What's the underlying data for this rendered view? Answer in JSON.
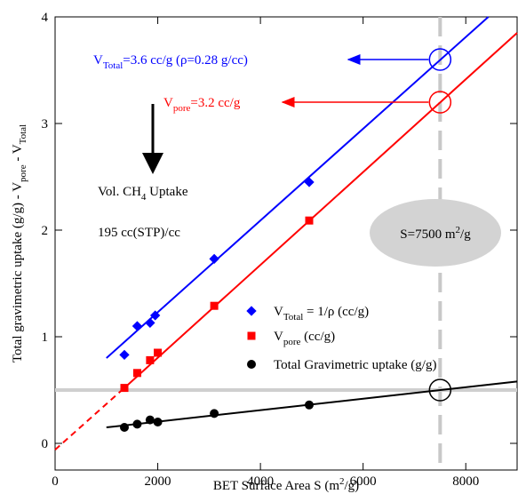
{
  "chart_data": {
    "type": "scatter",
    "xlabel": [
      "BET Surface Area S (m",
      "2",
      "/g)"
    ],
    "ylabel": [
      "Total gravimetric uptake (g/g) - V",
      "pore",
      " - V",
      "Total"
    ],
    "xlim": [
      0,
      9000
    ],
    "ylim": [
      -0.25,
      4
    ],
    "xticks": [
      0,
      2000,
      4000,
      6000,
      8000
    ],
    "yticks": [
      0,
      1,
      2,
      3,
      4
    ],
    "series": [
      {
        "name": [
          "V",
          "Total",
          " = 1/ρ (cc/g)"
        ],
        "color": "#0000ff",
        "marker": "diamond",
        "x": [
          1350,
          1600,
          1850,
          1950,
          3100,
          4950
        ],
        "values": [
          0.83,
          1.1,
          1.13,
          1.2,
          1.73,
          2.45
        ]
      },
      {
        "name": [
          "V",
          "pore",
          " (cc/g)"
        ],
        "color": "#ff0000",
        "marker": "square",
        "x": [
          1350,
          1600,
          1850,
          2000,
          3100,
          4950
        ],
        "values": [
          0.52,
          0.66,
          0.78,
          0.85,
          1.29,
          2.09
        ]
      },
      {
        "name": "Total Gravimetric uptake (g/g)",
        "color": "#000000",
        "marker": "circle",
        "x": [
          1350,
          1600,
          1850,
          2000,
          3100,
          4950
        ],
        "values": [
          0.15,
          0.18,
          0.22,
          0.2,
          0.28,
          0.36
        ]
      }
    ],
    "fits": [
      {
        "color": "#0000ff",
        "dashed": false,
        "x": [
          1000,
          8440
        ],
        "values": [
          0.8,
          4
        ]
      },
      {
        "color": "#ff0000",
        "dashed": false,
        "x": [
          1350,
          9000
        ],
        "values": [
          0.52,
          3.85
        ]
      },
      {
        "color": "#ff0000",
        "dashed": true,
        "x": [
          0,
          1350
        ],
        "values": [
          -0.06,
          0.52
        ]
      },
      {
        "color": "#000000",
        "dashed": false,
        "x": [
          1000,
          9000
        ],
        "values": [
          0.15,
          0.58
        ]
      }
    ],
    "targets": [
      {
        "color": "#0000ff",
        "x": 7500,
        "value": 3.6
      },
      {
        "color": "#ff0000",
        "x": 7500,
        "value": 3.2
      },
      {
        "color": "#000000",
        "x": 7500,
        "value": 0.5
      }
    ],
    "ref_x": 7500,
    "ref_y": 0.5,
    "annotations": {
      "total": [
        "V",
        "Total",
        "=3.6 cc/g (ρ=0.28 g/cc)"
      ],
      "pore": [
        "V",
        "pore",
        "=3.2 cc/g"
      ],
      "uptake": [
        "Vol. CH",
        "4",
        " Uptake"
      ],
      "volumetric": "195 cc(STP)/cc",
      "surface": [
        "S=7500 m",
        "2",
        "/g"
      ]
    }
  }
}
